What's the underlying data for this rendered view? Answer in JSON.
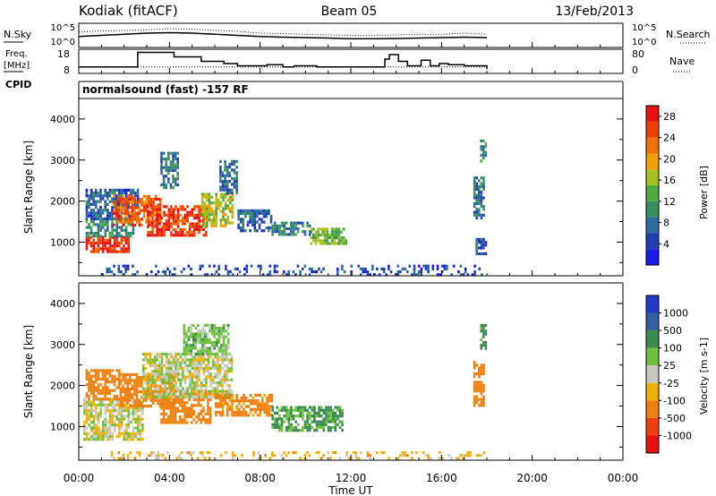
{
  "header": {
    "station": "Kodiak (fitACF)",
    "beam": "Beam 05",
    "date": "13/Feb/2013",
    "program": "normalsound (fast) -157 RF"
  },
  "top_panels": {
    "nsky_label": "N.Sky",
    "nsearch_label": "N.Search",
    "freq_label_line1": "Freq.",
    "freq_label_line2": "[MHz]",
    "nave_label": "Nave",
    "cpid_label": "CPID",
    "noise_ticks": [
      "10^5",
      "10^0"
    ],
    "freq_ticks": [
      "18",
      "8"
    ],
    "nave_ticks": [
      "80",
      "0"
    ]
  },
  "chart_data": [
    {
      "type": "line",
      "name": "noise",
      "ylabel": "N.Sky",
      "y2label": "N.Search",
      "yticks": [
        "10^5",
        "10^0"
      ],
      "xlim": [
        0,
        24
      ],
      "x": [
        0,
        1,
        2,
        3,
        4,
        5,
        6,
        7,
        8,
        9,
        10,
        11,
        12,
        13,
        14,
        15,
        16,
        17,
        18
      ],
      "series": [
        {
          "name": "N.Sky",
          "values": [
            0.45,
            0.5,
            0.55,
            0.6,
            0.62,
            0.6,
            0.55,
            0.5,
            0.45,
            0.42,
            0.4,
            0.38,
            0.35,
            0.35,
            0.36,
            0.38,
            0.4,
            0.42,
            0.4
          ]
        },
        {
          "name": "N.Search",
          "values": [
            0.65,
            0.7,
            0.72,
            0.75,
            0.8,
            0.78,
            0.72,
            0.68,
            0.6,
            0.58,
            0.55,
            0.52,
            0.5,
            0.5,
            0.52,
            0.55,
            0.55,
            0.6,
            0.55
          ]
        }
      ]
    },
    {
      "type": "line",
      "name": "frequency",
      "ylabel": "Freq. [MHz]",
      "y2label": "Nave",
      "ylim": [
        8,
        18
      ],
      "y2lim": [
        0,
        80
      ],
      "x": [
        0,
        2.4,
        2.6,
        3.8,
        4.2,
        5.0,
        5.4,
        6.1,
        6.4,
        7.0,
        8.3,
        9.0,
        9.5,
        10.5,
        12.0,
        13.5,
        13.7,
        14.1,
        14.5,
        15.1,
        15.5,
        15.9,
        16.3,
        17.0,
        18.0
      ],
      "series": [
        {
          "name": "Freq.",
          "values": [
            10.5,
            10.5,
            17,
            17,
            15,
            15,
            13,
            13,
            12,
            11,
            11.5,
            10.5,
            11,
            10.5,
            10.5,
            14,
            16,
            13,
            11,
            13.5,
            11,
            12,
            11.5,
            11,
            9.5
          ]
        },
        {
          "name": "Nave",
          "values": [
            20,
            20,
            20,
            20,
            20,
            20,
            20,
            20,
            20,
            20,
            20,
            20,
            20,
            20,
            20,
            20,
            20,
            20,
            20,
            20,
            20,
            20,
            20,
            20,
            20
          ]
        }
      ]
    },
    {
      "type": "heatmap",
      "name": "power",
      "ylabel": "Slant Range [km]",
      "colorbar_label": "Power [dB]",
      "xlim": [
        0,
        24
      ],
      "ylim": [
        180,
        4500
      ],
      "yticks": [
        1000,
        2000,
        3000,
        4000
      ],
      "zlim": [
        0,
        30
      ],
      "colorbar_ticks": [
        4,
        8,
        12,
        16,
        20,
        24,
        28
      ],
      "regions": [
        {
          "t0": 0.3,
          "t1": 2.2,
          "r0": 750,
          "r1": 1150,
          "value": 27
        },
        {
          "t0": 0.3,
          "t1": 2.4,
          "r0": 1150,
          "r1": 1600,
          "value": 10
        },
        {
          "t0": 0.3,
          "t1": 2.6,
          "r0": 1600,
          "r1": 2300,
          "value": 6
        },
        {
          "t0": 1.5,
          "t1": 3.6,
          "r0": 1450,
          "r1": 2150,
          "value": 24
        },
        {
          "t0": 3.0,
          "t1": 5.6,
          "r0": 1150,
          "r1": 1900,
          "value": 26
        },
        {
          "t0": 3.6,
          "t1": 4.4,
          "r0": 2300,
          "r1": 3200,
          "value": 9
        },
        {
          "t0": 5.4,
          "t1": 6.8,
          "r0": 1400,
          "r1": 2200,
          "value": 16
        },
        {
          "t0": 6.2,
          "t1": 7.0,
          "r0": 2200,
          "r1": 3000,
          "value": 7
        },
        {
          "t0": 7.0,
          "t1": 8.5,
          "r0": 1300,
          "r1": 1800,
          "value": 6
        },
        {
          "t0": 8.5,
          "t1": 10.2,
          "r0": 1200,
          "r1": 1500,
          "value": 9
        },
        {
          "t0": 10.2,
          "t1": 11.8,
          "r0": 1000,
          "r1": 1350,
          "value": 14
        },
        {
          "t0": 17.4,
          "t1": 17.9,
          "r0": 1600,
          "r1": 2600,
          "value": 8
        },
        {
          "t0": 17.5,
          "t1": 18.0,
          "r0": 750,
          "r1": 1100,
          "value": 6
        },
        {
          "t0": 17.7,
          "t1": 18.0,
          "r0": 3000,
          "r1": 3500,
          "value": 10
        },
        {
          "t0": 1.0,
          "t1": 18.0,
          "r0": 200,
          "r1": 450,
          "value": 5
        }
      ]
    },
    {
      "type": "heatmap",
      "name": "velocity",
      "ylabel": "Slant Range [km]",
      "colorbar_label": "Velocity [m s-1]",
      "xlabel": "Time UT",
      "xlim": [
        0,
        24
      ],
      "xticks": [
        "00:00",
        "04:00",
        "08:00",
        "12:00",
        "16:00",
        "20:00",
        "00:00"
      ],
      "ylim": [
        180,
        4500
      ],
      "yticks": [
        1000,
        2000,
        3000,
        4000
      ],
      "zlim": [
        -1200,
        1200
      ],
      "colorbar_ticks": [
        "1000",
        "500",
        "100",
        "25",
        "-25",
        "-100",
        "-500",
        "-1000"
      ],
      "regions": [
        {
          "t0": 0.2,
          "t1": 2.8,
          "r0": 700,
          "r1": 1700,
          "value": 0
        },
        {
          "t0": 0.3,
          "t1": 1.8,
          "r0": 1700,
          "r1": 2400,
          "value": -300
        },
        {
          "t0": 1.8,
          "t1": 4.2,
          "r0": 1500,
          "r1": 2300,
          "value": -400
        },
        {
          "t0": 3.6,
          "t1": 5.8,
          "r0": 1100,
          "r1": 1900,
          "value": -350
        },
        {
          "t0": 2.8,
          "t1": 6.8,
          "r0": 1700,
          "r1": 2800,
          "value": 5
        },
        {
          "t0": 4.6,
          "t1": 6.6,
          "r0": 2800,
          "r1": 3500,
          "value": 60
        },
        {
          "t0": 6.0,
          "t1": 8.5,
          "r0": 1300,
          "r1": 1800,
          "value": -150
        },
        {
          "t0": 8.5,
          "t1": 11.6,
          "r0": 900,
          "r1": 1500,
          "value": 120
        },
        {
          "t0": 17.4,
          "t1": 17.9,
          "r0": 1500,
          "r1": 2600,
          "value": -200
        },
        {
          "t0": 17.7,
          "t1": 18.0,
          "r0": 2900,
          "r1": 3500,
          "value": 150
        },
        {
          "t0": 1.0,
          "t1": 18.0,
          "r0": 200,
          "r1": 400,
          "value": -50
        }
      ]
    }
  ],
  "colors": {
    "power_scale": [
      "#1a1ae6",
      "#2040b0",
      "#2d6aa0",
      "#3a9060",
      "#50a840",
      "#a8c020",
      "#f0a000",
      "#f07000",
      "#f04000",
      "#e81010"
    ],
    "velocity_scale": [
      "#1e3cc8",
      "#3060a0",
      "#3a8a50",
      "#70c040",
      "#c8c8c0",
      "#f0b000",
      "#f08010",
      "#f04010",
      "#e81010"
    ]
  }
}
